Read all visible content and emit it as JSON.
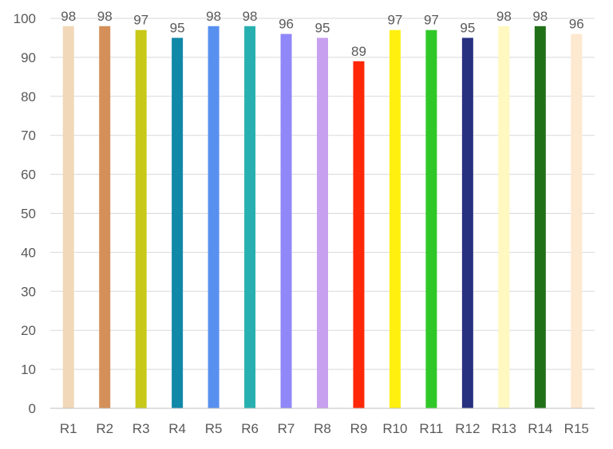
{
  "chart_data": {
    "type": "bar",
    "categories": [
      "R1",
      "R2",
      "R3",
      "R4",
      "R5",
      "R6",
      "R7",
      "R8",
      "R9",
      "R10",
      "R11",
      "R12",
      "R13",
      "R14",
      "R15"
    ],
    "values": [
      98,
      98,
      97,
      95,
      98,
      98,
      96,
      95,
      89,
      97,
      97,
      95,
      98,
      98,
      96
    ],
    "bar_colors": [
      "#f0d8b8",
      "#d49058",
      "#c8c818",
      "#1088a8",
      "#5890f0",
      "#28b0b0",
      "#9088f8",
      "#c8a0f0",
      "#ff2808",
      "#fff010",
      "#30c828",
      "#283080",
      "#fff8c0",
      "#207018",
      "#fde8d0"
    ],
    "title": "",
    "xlabel": "",
    "ylabel": "",
    "ylim": [
      0,
      100
    ],
    "yticks": [
      0,
      10,
      20,
      30,
      40,
      50,
      60,
      70,
      80,
      90,
      100
    ],
    "grid": true,
    "data_labels": true,
    "legend": "none"
  }
}
